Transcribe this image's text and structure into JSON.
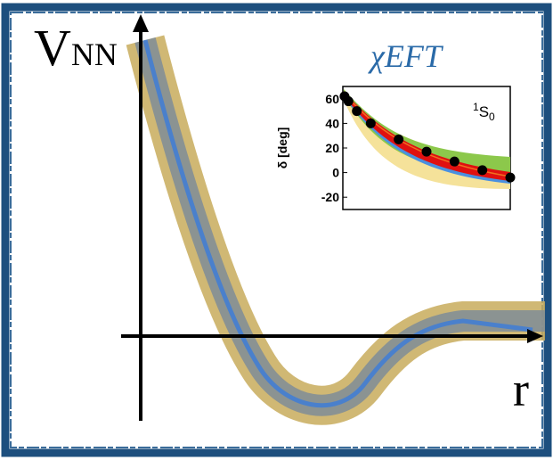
{
  "diagram": {
    "y_label": {
      "main": "V",
      "subscript": "NN"
    },
    "x_label": "r"
  },
  "chart_data": {
    "type": "scatter",
    "title": "χEFT",
    "y_label": "δ [deg]",
    "annotation": {
      "superscript": "1",
      "main": "S",
      "subscript": "0"
    },
    "x": [
      3,
      10,
      25,
      50,
      100,
      150,
      200,
      250,
      300
    ],
    "values": [
      62,
      58,
      50,
      40,
      27,
      17,
      9,
      2,
      -4
    ],
    "color": "#000000",
    "xlim": [
      0,
      300
    ],
    "ylim": [
      -30,
      70
    ],
    "yticks": [
      -20,
      0,
      20,
      40,
      60
    ]
  }
}
